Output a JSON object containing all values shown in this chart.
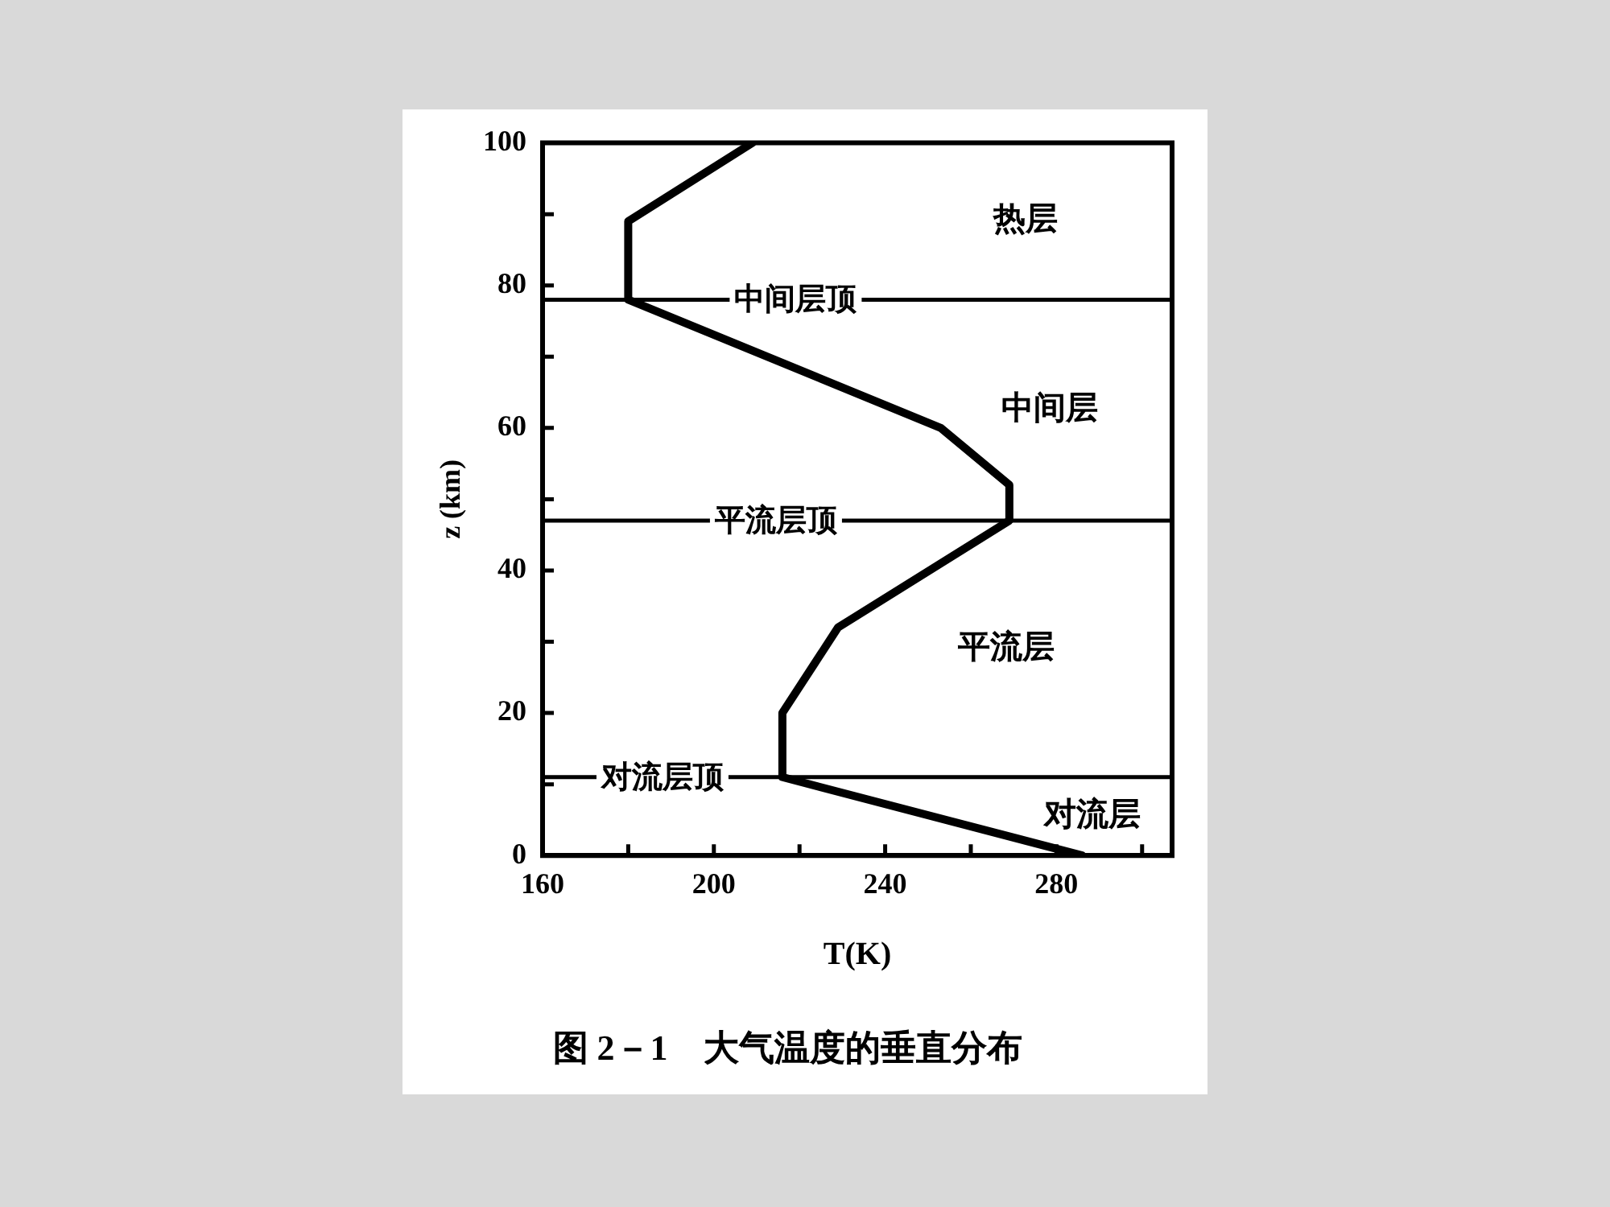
{
  "chart_data": {
    "type": "line",
    "title": "图 2－1　大气温度的垂直分布",
    "xlabel": "T(K)",
    "ylabel": "z (km)",
    "x": [
      286,
      216,
      216,
      229,
      269,
      269,
      253,
      180,
      180,
      209
    ],
    "values": [
      0,
      11,
      20,
      32,
      47,
      52,
      60,
      78,
      89,
      100
    ],
    "color": "#000000",
    "marker": "none",
    "xlim": [
      160,
      307
    ],
    "ylim": [
      0,
      100
    ],
    "xticks": [
      160,
      {
        "value": 180,
        "label": null
      },
      200,
      {
        "value": 220,
        "label": null
      },
      240,
      {
        "value": 260,
        "label": null
      },
      280,
      {
        "value": 300,
        "label": null
      }
    ],
    "yticks": [
      0,
      {
        "value": 10,
        "label": null
      },
      20,
      {
        "value": 30,
        "label": null
      },
      40,
      {
        "value": 50,
        "label": null
      },
      60,
      {
        "value": 70,
        "label": null
      },
      80,
      {
        "value": 90,
        "label": null
      },
      100
    ],
    "ref_lines": [
      {
        "axis": "y",
        "value": 11,
        "label": "对流层顶"
      },
      {
        "axis": "y",
        "value": 47,
        "label": "平流层顶"
      },
      {
        "axis": "y",
        "value": 78,
        "label": "中间层顶"
      }
    ],
    "annotations": [
      "热层",
      "中间层",
      "平流层",
      "对流层"
    ]
  }
}
